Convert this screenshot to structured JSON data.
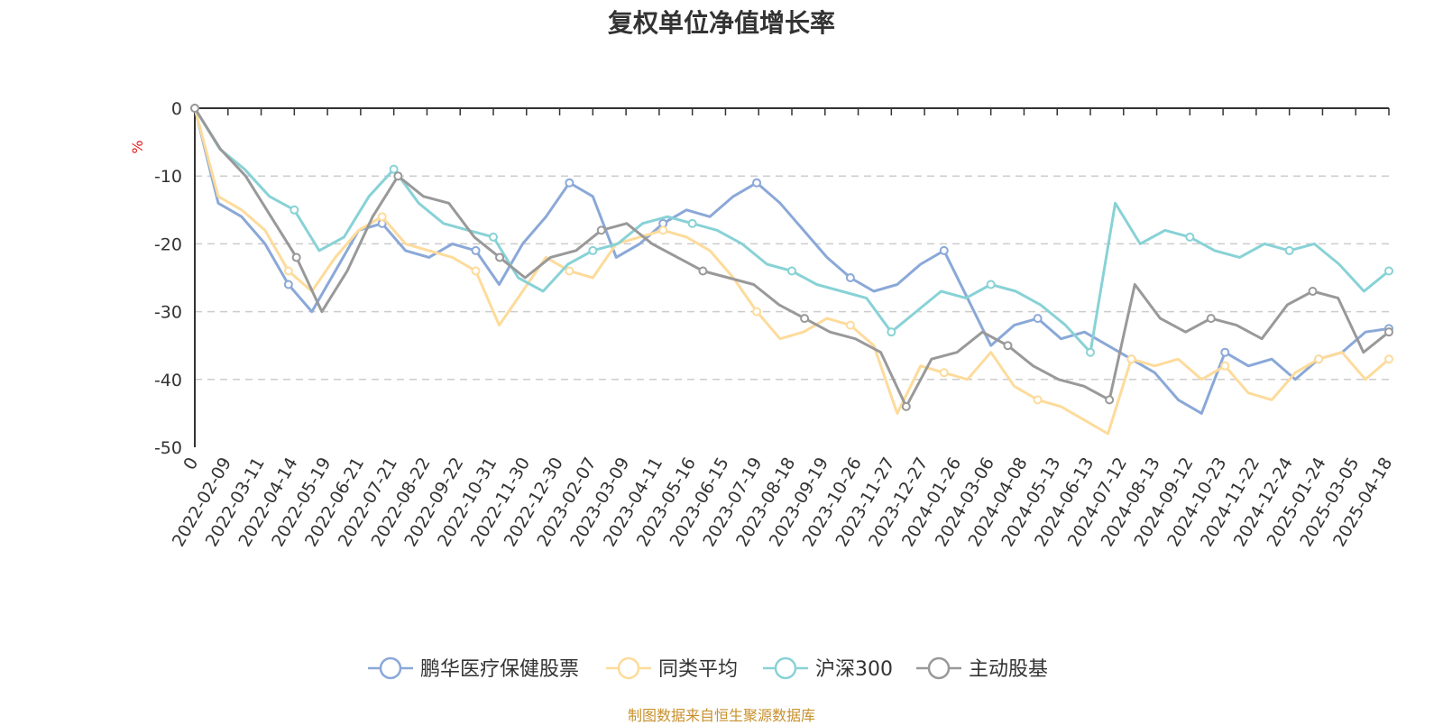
{
  "chart_data": {
    "type": "line",
    "title": "复权单位净值增长率",
    "ylabel": "%",
    "ylim": [
      -50,
      0
    ],
    "yticks": [
      0,
      -10,
      -20,
      -30,
      -40,
      -50
    ],
    "grid": true,
    "legend_position": "bottom",
    "x_tick_labels": [
      "0",
      "2022-02-09",
      "2022-03-11",
      "2022-04-14",
      "2022-05-19",
      "2022-06-21",
      "2022-07-21",
      "2022-08-22",
      "2022-09-22",
      "2022-10-31",
      "2022-11-30",
      "2022-12-30",
      "2023-02-07",
      "2023-03-09",
      "2023-04-11",
      "2023-05-16",
      "2023-06-15",
      "2023-07-19",
      "2023-08-18",
      "2023-09-19",
      "2023-10-26",
      "2023-11-27",
      "2023-12-27",
      "2024-01-26",
      "2024-03-06",
      "2024-04-08",
      "2024-05-13",
      "2024-06-13",
      "2024-07-12",
      "2024-08-13",
      "2024-09-12",
      "2024-10-23",
      "2024-11-22",
      "2024-12-24",
      "2025-01-24",
      "2025-03-05",
      "2025-04-18"
    ],
    "series": [
      {
        "name": "鹏华医疗保健股票",
        "color": "#8aa8d8",
        "values": [
          0,
          -14,
          -16,
          -20,
          -26,
          -30,
          -24,
          -18,
          -17,
          -21,
          -22,
          -20,
          -21,
          -26,
          -20,
          -16,
          -11,
          -13,
          -22,
          -20,
          -17,
          -15,
          -16,
          -13,
          -11,
          -14,
          -18,
          -22,
          -25,
          -27,
          -26,
          -23,
          -21,
          -28,
          -35,
          -32,
          -31,
          -34,
          -33,
          -35,
          -37,
          -39,
          -43,
          -45,
          -36,
          -38,
          -37,
          -40,
          -37,
          -36,
          -33,
          -32.5
        ]
      },
      {
        "name": "同类平均",
        "color": "#fddb9b",
        "values": [
          0,
          -13,
          -15,
          -18,
          -24,
          -27,
          -22,
          -18,
          -16,
          -20,
          -21,
          -22,
          -24,
          -32,
          -27,
          -22,
          -24,
          -25,
          -20,
          -19,
          -18,
          -19,
          -21,
          -25,
          -30,
          -34,
          -33,
          -31,
          -32,
          -35,
          -45,
          -38,
          -39,
          -40,
          -36,
          -41,
          -43,
          -44,
          -46,
          -48,
          -37,
          -38,
          -37,
          -40,
          -38,
          -42,
          -43,
          -39,
          -37,
          -36,
          -40,
          -37
        ]
      },
      {
        "name": "沪深300",
        "color": "#88d2d6",
        "values": [
          0,
          -6,
          -9,
          -13,
          -15,
          -21,
          -19,
          -13,
          -9,
          -14,
          -17,
          -18,
          -19,
          -25,
          -27,
          -23,
          -21,
          -20,
          -17,
          -16,
          -17,
          -18,
          -20,
          -23,
          -24,
          -26,
          -27,
          -28,
          -33,
          -30,
          -27,
          -28,
          -26,
          -27,
          -29,
          -32,
          -36,
          -14,
          -20,
          -18,
          -19,
          -21,
          -22,
          -20,
          -21,
          -20,
          -23,
          -27,
          -24
        ]
      },
      {
        "name": "主动股基",
        "color": "#999999",
        "values": [
          0,
          -6,
          -10,
          -16,
          -22,
          -30,
          -24,
          -16,
          -10,
          -13,
          -14,
          -19,
          -22,
          -25,
          -22,
          -21,
          -18,
          -17,
          -20,
          -22,
          -24,
          -25,
          -26,
          -29,
          -31,
          -33,
          -34,
          -36,
          -44,
          -37,
          -36,
          -33,
          -35,
          -38,
          -40,
          -41,
          -43,
          -26,
          -31,
          -33,
          -31,
          -32,
          -34,
          -29,
          -27,
          -28,
          -36,
          -33
        ]
      }
    ]
  },
  "source": "制图数据来自恒生聚源数据库"
}
